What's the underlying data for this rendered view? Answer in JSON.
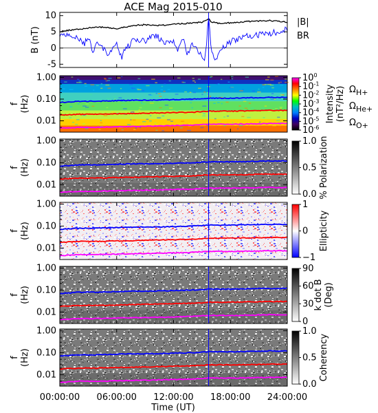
{
  "chart_data": {
    "title": "ACE Mag 2015-010",
    "x_axis": {
      "label": "Time (UT)",
      "ticks": [
        "00:00:00",
        "06:00:00",
        "12:00:00",
        "18:00:00",
        "24:00:00"
      ],
      "range_hours": [
        0,
        24
      ]
    },
    "event_marker_hour": 15.7,
    "panels": [
      {
        "type": "line",
        "ylabel": "B (nT)",
        "ylim": [
          -6,
          11
        ],
        "yticks": [
          -5,
          0,
          5,
          10
        ],
        "legend": [
          {
            "name": "|B|",
            "color": "#000000"
          },
          {
            "name": "B_R",
            "color": "#0000ff"
          }
        ],
        "series": [
          {
            "name": "|B|",
            "color": "#000000",
            "x": [
              0,
              1,
              2,
              3,
              4,
              5,
              6,
              7,
              8,
              9,
              10,
              11,
              12,
              13,
              14,
              15,
              15.7,
              16,
              17,
              18,
              19,
              20,
              21,
              22,
              23,
              24
            ],
            "values": [
              5,
              5.5,
              5.8,
              6.2,
              6.5,
              6.3,
              6.0,
              6.5,
              7.0,
              7.2,
              7.0,
              7.1,
              7.3,
              7.5,
              7.8,
              8.0,
              9.0,
              8.0,
              7.5,
              7.8,
              8.0,
              8.2,
              8.3,
              8.5,
              8.3,
              8.0
            ]
          },
          {
            "name": "B_R",
            "color": "#0000ff",
            "x": [
              0,
              1,
              2,
              2.5,
              3,
              3.5,
              4,
              4.5,
              5,
              6,
              6.5,
              7,
              8,
              9,
              10,
              11,
              12,
              12.5,
              13,
              13.5,
              14,
              14.5,
              15,
              15.3,
              15.7,
              16,
              16.5,
              17,
              18,
              19,
              20,
              21,
              22,
              23,
              24
            ],
            "values": [
              4,
              3.5,
              3,
              1,
              3,
              -1,
              2,
              0,
              -2,
              2,
              -3,
              0,
              3,
              2,
              4,
              2,
              2,
              -1,
              3,
              -2,
              1,
              0,
              -3,
              -5,
              10,
              -2,
              -3,
              0,
              2,
              3,
              4,
              4,
              4.5,
              5,
              6
            ]
          }
        ]
      },
      {
        "type": "heatmap",
        "ylabel": "f (Hz)",
        "ylim": [
          0.003,
          1.2
        ],
        "log_y": true,
        "yticks": [
          "1.00",
          "0.10",
          "0.01"
        ],
        "colorbar": {
          "label": "Intensity (nT²/Hz)",
          "ticks": [
            "10^0",
            "10^-1",
            "10^-2",
            "10^-3",
            "10^-4",
            "10^-5",
            "10^-6"
          ],
          "colormap": "rainbow"
        },
        "legend": [
          {
            "name": "Ω_H+",
            "color": "#0000ff"
          },
          {
            "name": "Ω_He+",
            "color": "#ff0000"
          },
          {
            "name": "Ω_O+",
            "color": "#ff00ff"
          }
        ]
      },
      {
        "type": "heatmap",
        "ylabel": "f (Hz)",
        "ylim": [
          0.003,
          1.2
        ],
        "log_y": true,
        "yticks": [
          "1.00",
          "0.10",
          "0.01"
        ],
        "colorbar": {
          "label": "% Polarization",
          "ticks": [
            "1.0",
            "0.5",
            "0.0"
          ],
          "colormap": "gray"
        }
      },
      {
        "type": "heatmap",
        "ylabel": "f (Hz)",
        "ylim": [
          0.003,
          1.2
        ],
        "log_y": true,
        "yticks": [
          "1.00",
          "0.10",
          "0.01"
        ],
        "colorbar": {
          "label": "Ellipticity",
          "ticks": [
            "1",
            "0",
            "−1"
          ],
          "colormap": "bwr"
        }
      },
      {
        "type": "heatmap",
        "ylabel": "f (Hz)",
        "ylim": [
          0.003,
          1.2
        ],
        "log_y": true,
        "yticks": [
          "1.00",
          "0.10",
          "0.01"
        ],
        "colorbar": {
          "label": "k dot B (Deg)",
          "ticks": [
            "90",
            "60",
            "30",
            "0"
          ],
          "colormap": "gray"
        }
      },
      {
        "type": "heatmap",
        "ylabel": "f (Hz)",
        "ylim": [
          0.003,
          1.2
        ],
        "log_y": true,
        "yticks": [
          "1.00",
          "0.10",
          "0.01"
        ],
        "colorbar": {
          "label": "Coherency",
          "ticks": [
            "1.0",
            "0.5",
            "0.0"
          ],
          "colormap": "gray"
        }
      }
    ],
    "gyrofrequency_lines": {
      "x": [
        0,
        2,
        4,
        6,
        8,
        10,
        12,
        14,
        15.7,
        18,
        20,
        22,
        24
      ],
      "H+": [
        0.07,
        0.08,
        0.08,
        0.085,
        0.09,
        0.09,
        0.095,
        0.1,
        0.11,
        0.11,
        0.115,
        0.12,
        0.12
      ],
      "He+": [
        0.018,
        0.02,
        0.02,
        0.021,
        0.022,
        0.023,
        0.024,
        0.025,
        0.028,
        0.028,
        0.029,
        0.03,
        0.03
      ],
      "O+": [
        0.0045,
        0.005,
        0.005,
        0.0053,
        0.0055,
        0.0057,
        0.006,
        0.0063,
        0.007,
        0.007,
        0.0072,
        0.0075,
        0.0075
      ]
    }
  }
}
